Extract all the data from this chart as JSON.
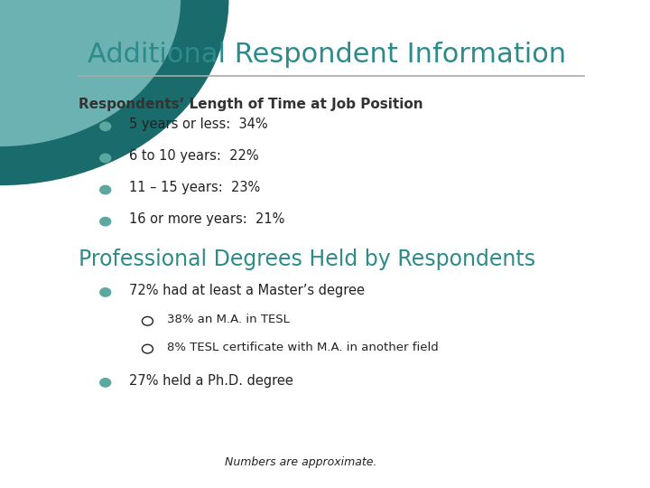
{
  "title": "Additional Respondent Information",
  "title_color": "#2E8B8B",
  "bg_color": "#FFFFFF",
  "section1_heading": "Respondents’ Length of Time at Job Position",
  "section1_bullets": [
    "5 years or less:  34%",
    "6 to 10 years:  22%",
    "11 – 15 years:  23%",
    "16 or more years:  21%"
  ],
  "section2_heading": "Professional Degrees Held by Respondents",
  "section2_bullet": "72% had at least a Master’s degree",
  "section2_sub_bullets": [
    "38% an M.A. in TESL",
    "8% TESL certificate with M.A. in another field"
  ],
  "section2_bullet2": "27% held a Ph.D. degree",
  "footer": "Numbers are approximate.",
  "bullet_color": "#5BA8A0",
  "line_color": "#AAAAAA",
  "heading_color": "#333333",
  "heading2_color": "#2E8B8B",
  "text_color": "#222222",
  "wedge1_color": "#1A6B6B",
  "wedge2_color": "#7BBFBF"
}
